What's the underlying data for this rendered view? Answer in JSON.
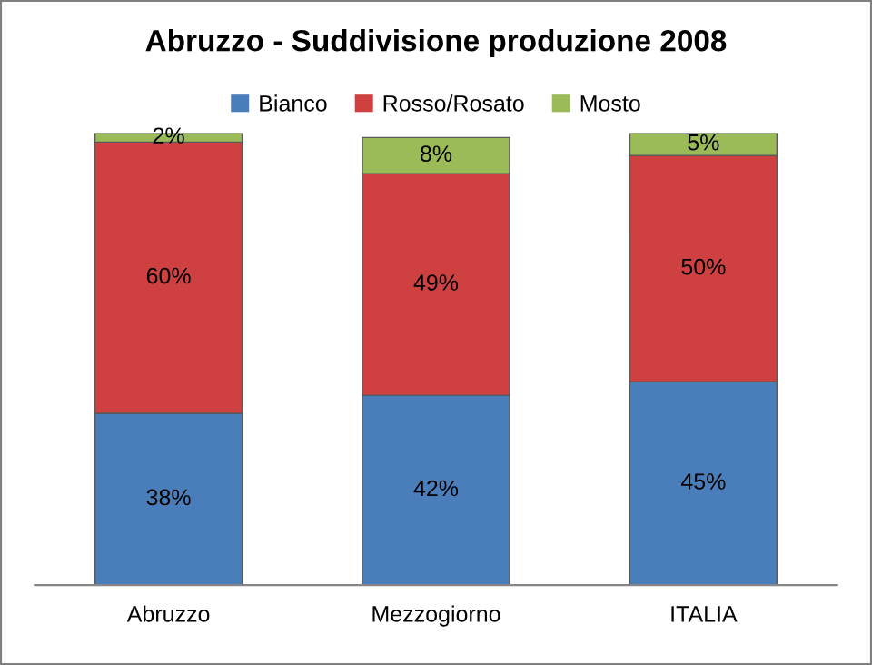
{
  "chart_data": {
    "type": "bar",
    "title": "Abruzzo - Suddivisione produzione 2008",
    "categories": [
      "Abruzzo",
      "Mezzogiorno",
      "ITALIA"
    ],
    "stacked": true,
    "legend": "top",
    "grid": false,
    "series": [
      {
        "name": "Bianco",
        "color": "#4a7ebb",
        "values": [
          38,
          42,
          45
        ],
        "value_labels": [
          "38%",
          "42%",
          "45%"
        ]
      },
      {
        "name": "Rosso/Rosato",
        "color": "#cf4040",
        "values": [
          60,
          49,
          50
        ],
        "value_labels": [
          "60%",
          "49%",
          "50%"
        ]
      },
      {
        "name": "Mosto",
        "color": "#9bbb59",
        "values": [
          2,
          8,
          5
        ],
        "value_labels": [
          "2%",
          "8%",
          "5%"
        ]
      }
    ]
  }
}
